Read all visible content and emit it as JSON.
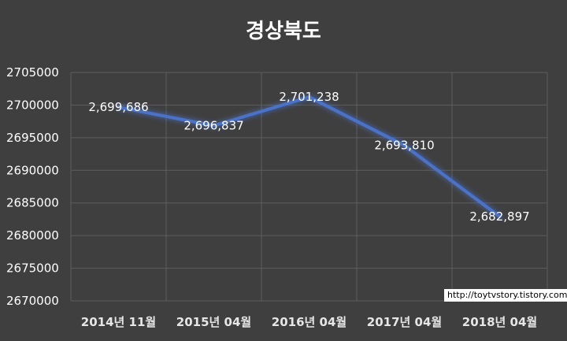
{
  "watermark": "http://toytvstory.tistory.com",
  "chart_data": {
    "type": "line",
    "title": "경상북도",
    "categories": [
      "2014년 11월",
      "2015년 04월",
      "2016년 04월",
      "2017년 04월",
      "2018년 04월"
    ],
    "series": [
      {
        "values": [
          2699686,
          2696837,
          2701238,
          2693810,
          2682897
        ],
        "data_labels": [
          "2,699,686",
          "2,696,837",
          "2,701,238",
          "2,693,810",
          "2,682,897"
        ],
        "color": "#4a72c8"
      }
    ],
    "ylim": [
      2670000,
      2705000
    ],
    "yticks": [
      "2670000",
      "2675000",
      "2680000",
      "2685000",
      "2690000",
      "2695000",
      "2700000",
      "2705000"
    ],
    "grid": true,
    "legend": "none",
    "xlabel": "",
    "ylabel": ""
  }
}
